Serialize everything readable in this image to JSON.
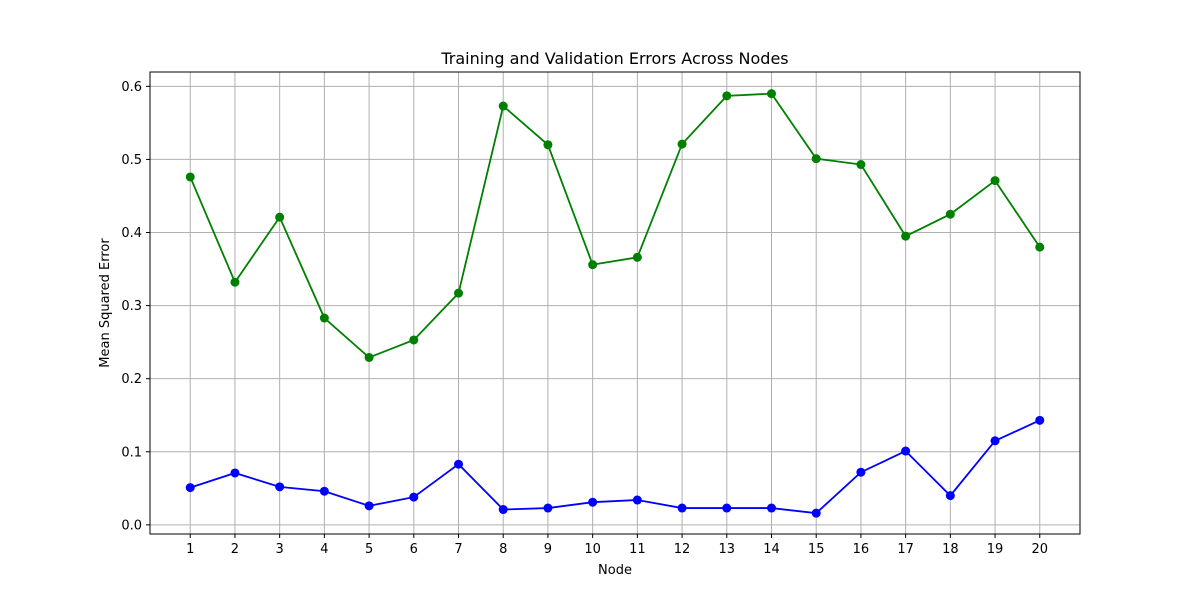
{
  "chart_data": {
    "type": "line",
    "title": "Training and Validation Errors Across Nodes",
    "xlabel": "Node",
    "ylabel": "Mean Squared Error",
    "x": [
      1,
      2,
      3,
      4,
      5,
      6,
      7,
      8,
      9,
      10,
      11,
      12,
      13,
      14,
      15,
      16,
      17,
      18,
      19,
      20
    ],
    "xlim": [
      0.1,
      20.9
    ],
    "ylim": [
      -0.0125,
      0.6196
    ],
    "yticks": [
      0.0,
      0.1,
      0.2,
      0.3,
      0.4,
      0.5,
      0.6
    ],
    "ytick_labels": [
      "0.0",
      "0.1",
      "0.2",
      "0.3",
      "0.4",
      "0.5",
      "0.6"
    ],
    "grid": true,
    "series": [
      {
        "color": "#008000",
        "marker": "circle",
        "values": [
          0.476,
          0.332,
          0.421,
          0.283,
          0.229,
          0.253,
          0.317,
          0.573,
          0.52,
          0.356,
          0.366,
          0.521,
          0.587,
          0.59,
          0.501,
          0.493,
          0.395,
          0.425,
          0.471,
          0.38
        ]
      },
      {
        "color": "#0000ff",
        "marker": "circle",
        "values": [
          0.051,
          0.071,
          0.052,
          0.046,
          0.026,
          0.038,
          0.083,
          0.021,
          0.023,
          0.031,
          0.034,
          0.023,
          0.023,
          0.023,
          0.016,
          0.072,
          0.101,
          0.04,
          0.115,
          0.143
        ]
      }
    ]
  }
}
